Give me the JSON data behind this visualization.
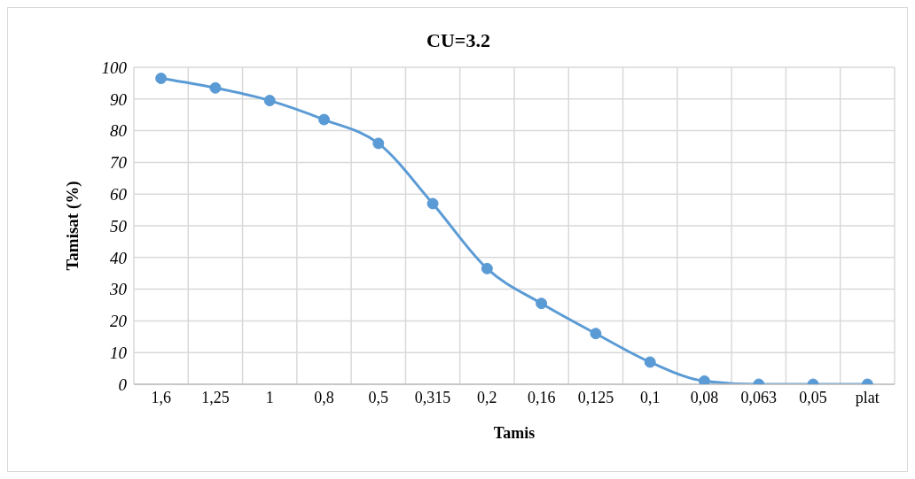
{
  "chart_data": {
    "type": "line",
    "title": "CU=3.2",
    "xlabel": "Tamis",
    "ylabel": "Tamisat (%)",
    "categories": [
      "1,6",
      "1,25",
      "1",
      "0,8",
      "0,5",
      "0,315",
      "0,2",
      "0,16",
      "0,125",
      "0,1",
      "0,08",
      "0,063",
      "0,05",
      "plat"
    ],
    "series": [
      {
        "color": "#5b9bd5",
        "values": [
          96.5,
          93.5,
          89.5,
          83.5,
          76,
          57,
          36.5,
          25.5,
          16,
          7,
          1,
          0,
          0,
          0
        ]
      }
    ],
    "ylim": [
      0,
      100
    ],
    "yticks": [
      0,
      10,
      20,
      30,
      40,
      50,
      60,
      70,
      80,
      90,
      100
    ],
    "grid": true,
    "marker": "circle",
    "line_style": "solid",
    "legend": false
  }
}
